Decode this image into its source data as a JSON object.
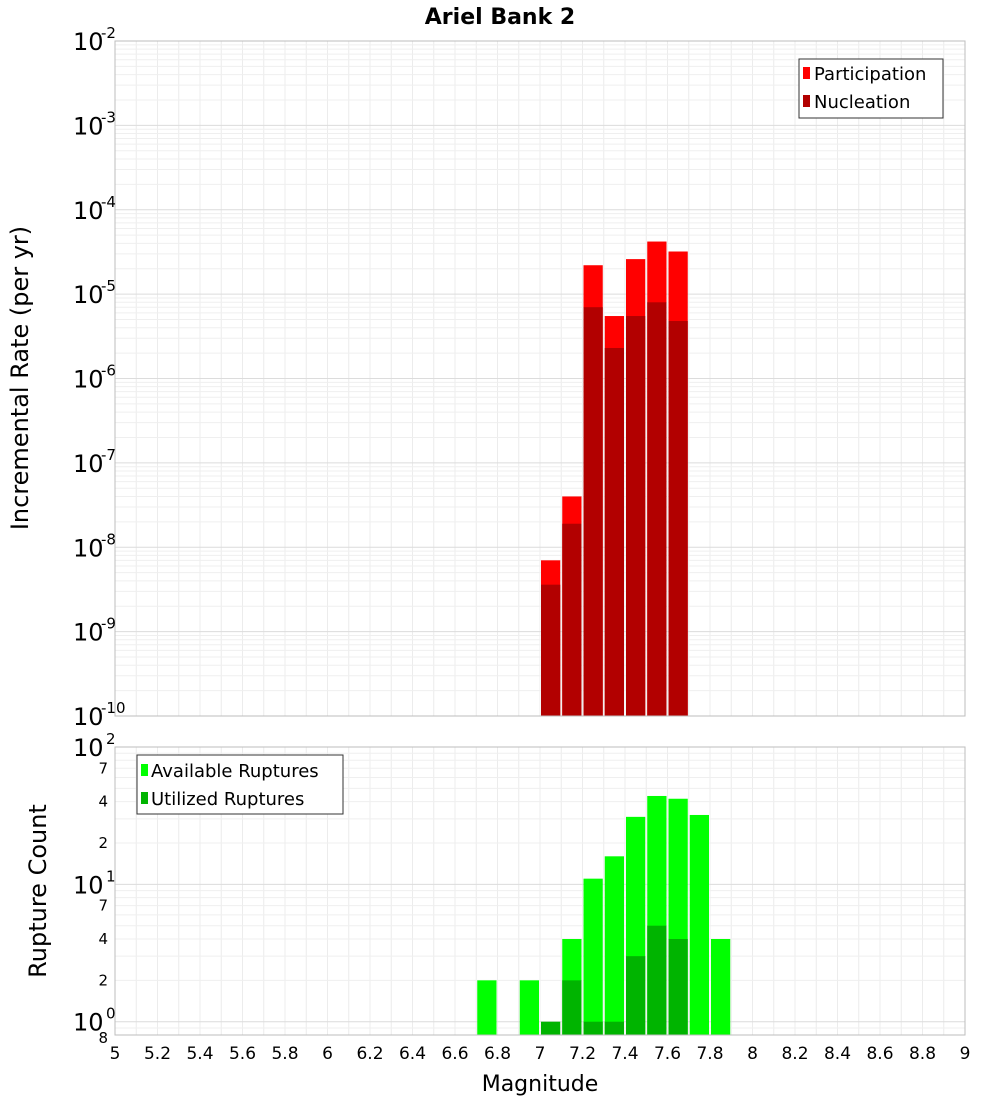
{
  "chart_data": [
    {
      "type": "bar",
      "title": "Ariel Bank 2",
      "xlabel": "Magnitude",
      "ylabel": "Incremental Rate (per yr)",
      "xlim": [
        5,
        9
      ],
      "ylim": [
        1e-10,
        0.01
      ],
      "yscale": "log",
      "grid": true,
      "legend_position": "top-right",
      "x_ticks": [
        "5",
        "5.2",
        "5.4",
        "5.6",
        "5.8",
        "6",
        "6.2",
        "6.4",
        "6.6",
        "6.8",
        "7",
        "7.2",
        "7.4",
        "7.6",
        "7.8",
        "8",
        "8.2",
        "8.4",
        "8.6",
        "8.8",
        "9"
      ],
      "y_tick_base": "10",
      "y_tick_exponents": [
        "-10",
        "-9",
        "-8",
        "-7",
        "-6",
        "-5",
        "-4",
        "-3",
        "-2"
      ],
      "x": [
        7.05,
        7.15,
        7.25,
        7.35,
        7.45,
        7.55,
        7.65
      ],
      "series": [
        {
          "name": "Participation",
          "color": "#ff0000",
          "values": [
            7e-09,
            4e-08,
            2.2e-05,
            5.5e-06,
            2.6e-05,
            4.2e-05,
            3.2e-05
          ]
        },
        {
          "name": "Nucleation",
          "color": "#b20000",
          "values": [
            3.6e-09,
            1.9e-08,
            7e-06,
            2.3e-06,
            5.5e-06,
            8e-06,
            4.8e-06
          ]
        }
      ]
    },
    {
      "type": "bar",
      "xlabel": "Magnitude",
      "ylabel": "Rupture Count",
      "xlim": [
        5,
        9
      ],
      "ylim": [
        0.8,
        100
      ],
      "yscale": "log",
      "grid": true,
      "legend_position": "top-left",
      "x_ticks": [
        "5",
        "5.2",
        "5.4",
        "5.6",
        "5.8",
        "6",
        "6.2",
        "6.4",
        "6.6",
        "6.8",
        "7",
        "7.2",
        "7.4",
        "7.6",
        "7.8",
        "8",
        "8.2",
        "8.4",
        "8.6",
        "8.8",
        "9"
      ],
      "y_major_ticks": [
        {
          "base": "10",
          "exp": "0",
          "value": 1
        },
        {
          "base": "10",
          "exp": "1",
          "value": 10
        },
        {
          "base": "10",
          "exp": "2",
          "value": 100
        }
      ],
      "y_minor_ticks": [
        {
          "label": "8",
          "value": 0.8
        },
        {
          "label": "2",
          "value": 2
        },
        {
          "label": "4",
          "value": 4
        },
        {
          "label": "7",
          "value": 7
        },
        {
          "label": "2",
          "value": 20
        },
        {
          "label": "4",
          "value": 40
        },
        {
          "label": "7",
          "value": 70
        }
      ],
      "x": [
        6.75,
        6.95,
        7.05,
        7.15,
        7.25,
        7.35,
        7.45,
        7.55,
        7.65,
        7.75,
        7.85
      ],
      "series": [
        {
          "name": "Available Ruptures",
          "color": "#00ff00",
          "values": [
            2,
            2,
            null,
            4,
            11,
            16,
            31,
            44,
            42,
            32,
            4
          ]
        },
        {
          "name": "Utilized Ruptures",
          "color": "#00b400",
          "values": [
            null,
            null,
            1,
            2,
            1,
            1,
            3,
            5,
            4,
            null,
            null
          ]
        }
      ]
    }
  ]
}
